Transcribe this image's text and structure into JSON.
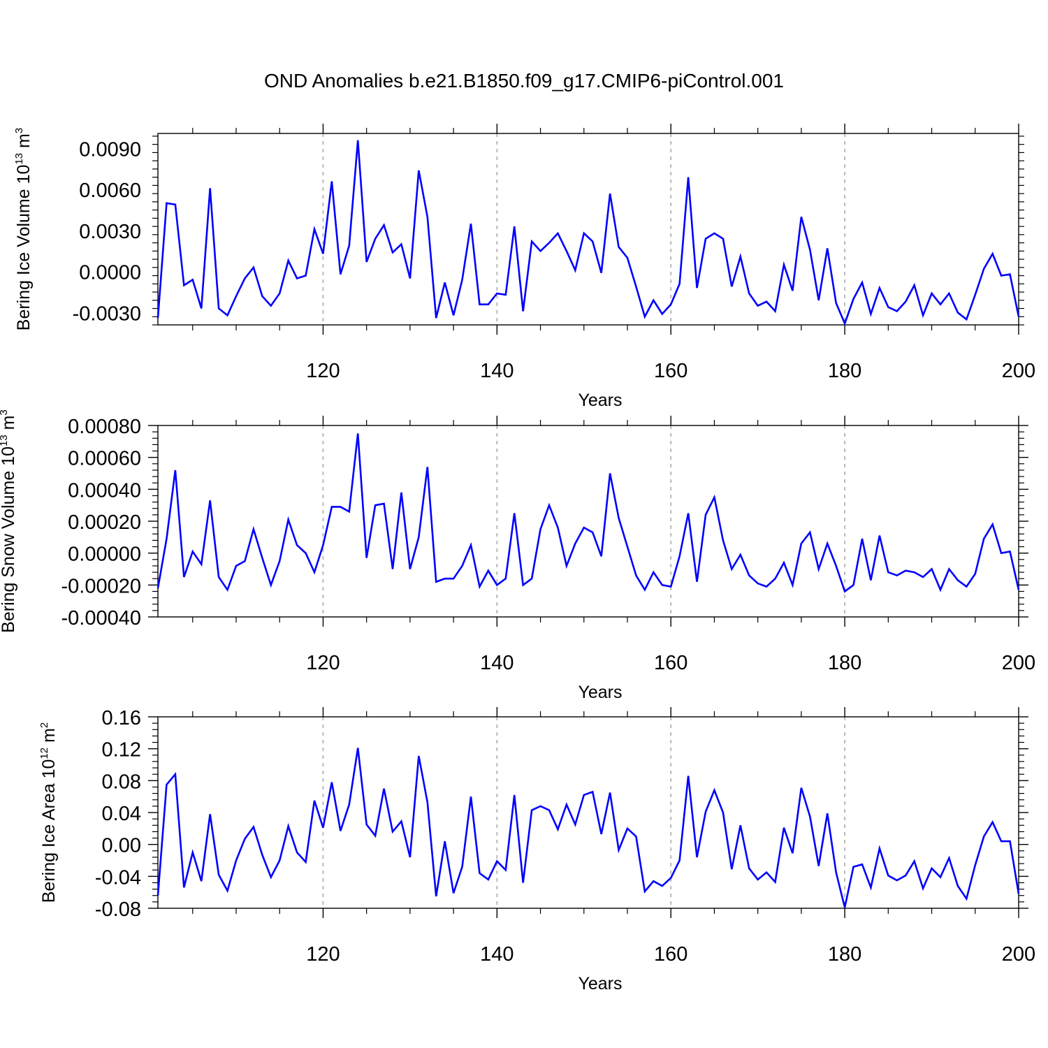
{
  "title": "OND Anomalies b.e21.B1850.f09_g17.CMIP6-piControl.001",
  "colors": {
    "series": "#0000ff",
    "axis": "#000000",
    "grid": "#aaaaaa"
  },
  "chart_data": [
    {
      "type": "line",
      "title": "",
      "xlabel": "Years",
      "ylabel_main": "Bering Ice Volume 10",
      "ylabel_exp": "13",
      "ylabel_unit": " m",
      "ylabel_unit_exp": "3",
      "xlim": [
        101,
        200
      ],
      "ylim": [
        -0.0039,
        0.0101
      ],
      "xticks": [
        120,
        140,
        160,
        180,
        200
      ],
      "xtick_labels": [
        "120",
        "140",
        "160",
        "180",
        "200"
      ],
      "yticks": [
        -0.003,
        0.0,
        0.003,
        0.006,
        0.009
      ],
      "ytick_labels": [
        "-0.0030",
        "0.0000",
        "0.0030",
        "0.0060",
        "0.0090"
      ],
      "vgrid": [
        120,
        140,
        160,
        180
      ],
      "x_start": 101,
      "series": [
        {
          "values": [
            -0.0034,
            0.005,
            0.0049,
            -0.001,
            -0.0006,
            -0.0027,
            0.0061,
            -0.0027,
            -0.0032,
            -0.0018,
            -0.0005,
            0.0003,
            -0.0018,
            -0.0025,
            -0.0016,
            0.0008,
            -0.0005,
            -0.0003,
            0.0031,
            0.0013,
            0.0066,
            -0.0002,
            0.0019,
            0.0096,
            0.0007,
            0.0024,
            0.0034,
            0.0014,
            0.002,
            -0.0005,
            0.0074,
            0.004,
            -0.0034,
            -0.0008,
            -0.0032,
            -0.0006,
            0.0035,
            -0.0024,
            -0.0024,
            -0.0016,
            -0.0017,
            0.0033,
            -0.0029,
            0.0022,
            0.0015,
            0.0021,
            0.0028,
            0.0015,
            0.0001,
            0.0028,
            0.0022,
            -0.0001,
            0.0057,
            0.0018,
            0.001,
            -0.0011,
            -0.0033,
            -0.0021,
            -0.0031,
            -0.0024,
            -0.0009,
            0.0069,
            -0.0012,
            0.0024,
            0.0028,
            0.0024,
            -0.0011,
            0.0011,
            -0.0016,
            -0.0025,
            -0.0022,
            -0.0029,
            0.0005,
            -0.0014,
            0.004,
            0.0016,
            -0.0021,
            0.0017,
            -0.0023,
            -0.0038,
            -0.002,
            -0.0008,
            -0.0031,
            -0.0012,
            -0.0026,
            -0.0029,
            -0.0022,
            -0.001,
            -0.0032,
            -0.0016,
            -0.0024,
            -0.0016,
            -0.003,
            -0.0035,
            -0.0017,
            0.0002,
            0.0013,
            -0.0003,
            -0.0002,
            -0.0033
          ]
        }
      ]
    },
    {
      "type": "line",
      "title": "",
      "xlabel": "Years",
      "ylabel_main": "Bering Snow Volume 10",
      "ylabel_exp": "13",
      "ylabel_unit": " m",
      "ylabel_unit_exp": "3",
      "xlim": [
        101,
        200
      ],
      "ylim": [
        -0.0004,
        0.0008
      ],
      "xticks": [
        120,
        140,
        160,
        180,
        200
      ],
      "xtick_labels": [
        "120",
        "140",
        "160",
        "180",
        "200"
      ],
      "yticks": [
        -0.0004,
        -0.0002,
        0.0,
        0.0002,
        0.0004,
        0.0006,
        0.0008
      ],
      "ytick_labels": [
        "-0.00040",
        "-0.00020",
        "0.00000",
        "0.00020",
        "0.00040",
        "0.00060",
        "0.00080"
      ],
      "vgrid": [
        120,
        140,
        160,
        180
      ],
      "x_start": 101,
      "series": [
        {
          "values": [
            -0.00022,
            9e-05,
            0.00052,
            -0.00015,
            1e-05,
            -7e-05,
            0.00033,
            -0.00015,
            -0.00023,
            -8e-05,
            -5e-05,
            0.00015,
            -3e-05,
            -0.0002,
            -5e-05,
            0.00021,
            5e-05,
            0.0,
            -0.00012,
            5e-05,
            0.00029,
            0.00029,
            0.00026,
            0.00075,
            -3e-05,
            0.0003,
            0.00031,
            -0.0001,
            0.00038,
            -0.0001,
            0.0001,
            0.00054,
            -0.00018,
            -0.00016,
            -0.00016,
            -8e-05,
            5e-05,
            -0.00021,
            -0.00011,
            -0.0002,
            -0.00016,
            0.00025,
            -0.0002,
            -0.00016,
            0.00015,
            0.0003,
            0.00016,
            -8e-05,
            6e-05,
            0.00016,
            0.00013,
            -2e-05,
            0.0005,
            0.00022,
            4e-05,
            -0.00014,
            -0.00023,
            -0.00012,
            -0.0002,
            -0.00021,
            -2e-05,
            0.00025,
            -0.00018,
            0.00024,
            0.00035,
            8e-05,
            -0.0001,
            -1e-05,
            -0.00014,
            -0.00019,
            -0.00021,
            -0.00016,
            -6e-05,
            -0.0002,
            6e-05,
            0.00013,
            -0.0001,
            6e-05,
            -8e-05,
            -0.00024,
            -0.0002,
            9e-05,
            -0.00017,
            0.00011,
            -0.00012,
            -0.00014,
            -0.00011,
            -0.00012,
            -0.00015,
            -0.0001,
            -0.00023,
            -0.0001,
            -0.00017,
            -0.00021,
            -0.00013,
            9e-05,
            0.00018,
            0.0,
            1e-05,
            -0.00023
          ]
        }
      ]
    },
    {
      "type": "line",
      "title": "",
      "xlabel": "Years",
      "ylabel_main": "Bering Ice Area 10",
      "ylabel_exp": "12",
      "ylabel_unit": " m",
      "ylabel_unit_exp": "2",
      "xlim": [
        101,
        200
      ],
      "ylim": [
        -0.08,
        0.16
      ],
      "xticks": [
        120,
        140,
        160,
        180,
        200
      ],
      "xtick_labels": [
        "120",
        "140",
        "160",
        "180",
        "200"
      ],
      "yticks": [
        -0.08,
        -0.04,
        0.0,
        0.04,
        0.08,
        0.12,
        0.16
      ],
      "ytick_labels": [
        "-0.08",
        "-0.04",
        "0.00",
        "0.04",
        "0.08",
        "0.12",
        "0.16"
      ],
      "vgrid": [
        120,
        140,
        160,
        180
      ],
      "x_start": 101,
      "series": [
        {
          "values": [
            -0.064,
            0.075,
            0.088,
            -0.054,
            -0.01,
            -0.046,
            0.038,
            -0.038,
            -0.058,
            -0.02,
            0.007,
            0.022,
            -0.013,
            -0.041,
            -0.02,
            0.023,
            -0.01,
            -0.022,
            0.055,
            0.021,
            0.078,
            0.017,
            0.05,
            0.121,
            0.025,
            0.011,
            0.07,
            0.016,
            0.029,
            -0.016,
            0.111,
            0.053,
            -0.065,
            0.004,
            -0.061,
            -0.028,
            0.06,
            -0.036,
            -0.044,
            -0.021,
            -0.032,
            0.062,
            -0.048,
            0.043,
            0.048,
            0.043,
            0.019,
            0.05,
            0.025,
            0.062,
            0.066,
            0.013,
            0.065,
            -0.007,
            0.02,
            0.01,
            -0.059,
            -0.046,
            -0.052,
            -0.042,
            -0.02,
            0.086,
            -0.016,
            0.041,
            0.068,
            0.04,
            -0.031,
            0.024,
            -0.03,
            -0.044,
            -0.035,
            -0.047,
            0.021,
            -0.011,
            0.071,
            0.035,
            -0.027,
            0.039,
            -0.035,
            -0.079,
            -0.028,
            -0.025,
            -0.054,
            -0.005,
            -0.039,
            -0.045,
            -0.039,
            -0.021,
            -0.055,
            -0.03,
            -0.041,
            -0.017,
            -0.052,
            -0.068,
            -0.026,
            0.01,
            0.028,
            0.004,
            0.004,
            -0.062
          ]
        }
      ]
    }
  ]
}
